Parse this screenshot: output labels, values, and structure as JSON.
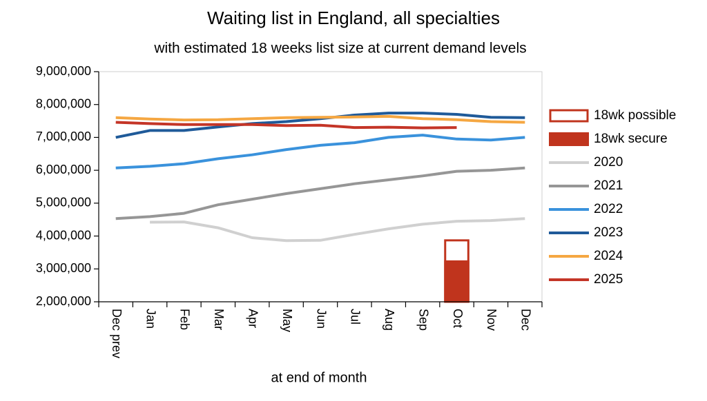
{
  "chart_data": {
    "type": "line",
    "title": "Waiting list in England, all specialties",
    "subtitle": "with estimated 18 weeks list size at current demand levels",
    "x_label": "at end of month",
    "categories": [
      "Dec prev",
      "Jan",
      "Feb",
      "Mar",
      "Apr",
      "May",
      "Jun",
      "Jul",
      "Aug",
      "Sep",
      "Oct",
      "Nov",
      "Dec"
    ],
    "ylim": [
      2000000,
      9000000
    ],
    "yticks": [
      {
        "value": 2000000,
        "label": "2,000,000"
      },
      {
        "value": 3000000,
        "label": "3,000,000"
      },
      {
        "value": 4000000,
        "label": "4,000,000"
      },
      {
        "value": 5000000,
        "label": "5,000,000"
      },
      {
        "value": 6000000,
        "label": "6,000,000"
      },
      {
        "value": 7000000,
        "label": "7,000,000"
      },
      {
        "value": 8000000,
        "label": "8,000,000"
      },
      {
        "value": 9000000,
        "label": "9,000,000"
      }
    ],
    "series": [
      {
        "name": "18wk possible",
        "type": "bar",
        "style": "outline",
        "color": "#c0341d",
        "values": [
          null,
          null,
          null,
          null,
          null,
          null,
          null,
          null,
          null,
          null,
          3900000,
          null,
          null
        ]
      },
      {
        "name": "18wk secure",
        "type": "bar",
        "style": "filled",
        "color": "#c0341d",
        "values": [
          null,
          null,
          null,
          null,
          null,
          null,
          null,
          null,
          null,
          null,
          3260000,
          null,
          null
        ]
      },
      {
        "name": "2020",
        "type": "line",
        "color": "#d0d0d0",
        "values": [
          null,
          4420000,
          4430000,
          4250000,
          3950000,
          3860000,
          3870000,
          4050000,
          4220000,
          4360000,
          4450000,
          4470000,
          4530000
        ]
      },
      {
        "name": "2021",
        "type": "line",
        "color": "#969696",
        "values": [
          4530000,
          4590000,
          4690000,
          4950000,
          5120000,
          5290000,
          5440000,
          5590000,
          5710000,
          5830000,
          5970000,
          6000000,
          6070000
        ]
      },
      {
        "name": "2022",
        "type": "line",
        "color": "#3a92dc",
        "values": [
          6070000,
          6120000,
          6200000,
          6350000,
          6470000,
          6630000,
          6760000,
          6840000,
          7000000,
          7070000,
          6950000,
          6920000,
          7000000
        ]
      },
      {
        "name": "2023",
        "type": "line",
        "color": "#1f5a99",
        "values": [
          7000000,
          7210000,
          7210000,
          7320000,
          7420000,
          7480000,
          7570000,
          7680000,
          7740000,
          7740000,
          7700000,
          7610000,
          7600000
        ]
      },
      {
        "name": "2024",
        "type": "line",
        "color": "#f5a742",
        "values": [
          7600000,
          7560000,
          7530000,
          7540000,
          7570000,
          7600000,
          7610000,
          7620000,
          7640000,
          7570000,
          7540000,
          7480000,
          7460000
        ]
      },
      {
        "name": "2025",
        "type": "line",
        "color": "#c43527",
        "values": [
          7460000,
          7420000,
          7390000,
          7390000,
          7390000,
          7360000,
          7370000,
          7300000,
          7310000,
          7290000,
          7300000,
          null,
          null
        ]
      }
    ]
  }
}
